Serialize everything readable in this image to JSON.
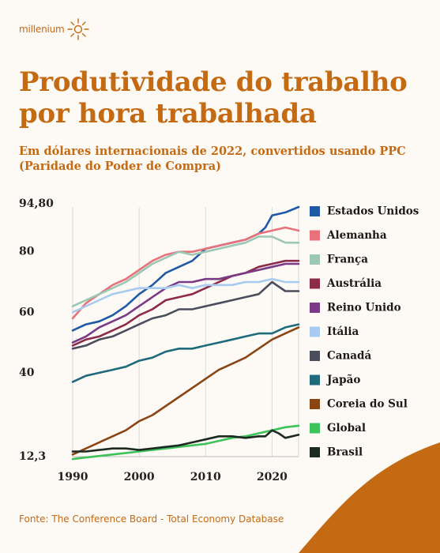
{
  "brand": {
    "name": "millenium"
  },
  "colors": {
    "accent": "#c46a12",
    "background": "#fdf9f5"
  },
  "header": {
    "title": "Produtividade do trabalho por hora trabalhada",
    "subtitle": "Em dólares internacionais de 2022, convertidos usando PPC (Paridade do Poder de Compra)"
  },
  "footer": {
    "source": "Fonte: The Conference Board - Total Economy Database"
  },
  "chart_data": {
    "type": "line",
    "title": "Produtividade do trabalho por hora trabalhada",
    "subtitle": "Em dólares internacionais de 2022, convertidos usando PPC (Paridade do Poder de Compra)",
    "xlabel": "",
    "ylabel": "",
    "xlim": [
      1990,
      2024
    ],
    "ylim": [
      12.3,
      94.8
    ],
    "x_ticks": [
      1990,
      2000,
      2010,
      2020
    ],
    "y_ticks": [
      12.3,
      40,
      60,
      80,
      94.8
    ],
    "y_tick_labels": [
      "12,3",
      "40",
      "60",
      "80",
      "94,80"
    ],
    "grid": "vertical",
    "legend_position": "right",
    "series": [
      {
        "name": "Estados Unidos",
        "color": "#1f5aa6",
        "points": [
          [
            1990,
            54
          ],
          [
            1992,
            56
          ],
          [
            1994,
            57
          ],
          [
            1996,
            59
          ],
          [
            1998,
            62
          ],
          [
            2000,
            66
          ],
          [
            2002,
            69
          ],
          [
            2004,
            73
          ],
          [
            2006,
            75
          ],
          [
            2008,
            77
          ],
          [
            2010,
            81
          ],
          [
            2012,
            82
          ],
          [
            2014,
            83
          ],
          [
            2016,
            84
          ],
          [
            2018,
            86
          ],
          [
            2019,
            88
          ],
          [
            2020,
            92
          ],
          [
            2022,
            93
          ],
          [
            2024,
            94.8
          ]
        ]
      },
      {
        "name": "Alemanha",
        "color": "#e8727a",
        "points": [
          [
            1990,
            58
          ],
          [
            1992,
            63
          ],
          [
            1994,
            66
          ],
          [
            1996,
            69
          ],
          [
            1998,
            71
          ],
          [
            2000,
            74
          ],
          [
            2002,
            77
          ],
          [
            2004,
            79
          ],
          [
            2006,
            80
          ],
          [
            2008,
            80
          ],
          [
            2010,
            81
          ],
          [
            2012,
            82
          ],
          [
            2014,
            83
          ],
          [
            2016,
            84
          ],
          [
            2018,
            86
          ],
          [
            2020,
            87
          ],
          [
            2022,
            88
          ],
          [
            2024,
            87
          ]
        ]
      },
      {
        "name": "França",
        "color": "#9cc7b4",
        "points": [
          [
            1990,
            62
          ],
          [
            1992,
            64
          ],
          [
            1994,
            66
          ],
          [
            1996,
            68
          ],
          [
            1998,
            70
          ],
          [
            2000,
            73
          ],
          [
            2002,
            76
          ],
          [
            2004,
            78
          ],
          [
            2006,
            80
          ],
          [
            2008,
            79
          ],
          [
            2010,
            80
          ],
          [
            2012,
            81
          ],
          [
            2014,
            82
          ],
          [
            2016,
            83
          ],
          [
            2018,
            85
          ],
          [
            2020,
            85
          ],
          [
            2022,
            83
          ],
          [
            2024,
            83
          ]
        ]
      },
      {
        "name": "Austrália",
        "color": "#8c2b4a",
        "points": [
          [
            1990,
            49
          ],
          [
            1992,
            51
          ],
          [
            1994,
            52
          ],
          [
            1996,
            54
          ],
          [
            1998,
            56
          ],
          [
            2000,
            59
          ],
          [
            2002,
            61
          ],
          [
            2004,
            64
          ],
          [
            2006,
            65
          ],
          [
            2008,
            66
          ],
          [
            2010,
            68
          ],
          [
            2012,
            70
          ],
          [
            2014,
            72
          ],
          [
            2016,
            73
          ],
          [
            2018,
            75
          ],
          [
            2020,
            76
          ],
          [
            2022,
            77
          ],
          [
            2024,
            77
          ]
        ]
      },
      {
        "name": "Reino Unido",
        "color": "#7a3a86",
        "points": [
          [
            1990,
            50
          ],
          [
            1992,
            52
          ],
          [
            1994,
            55
          ],
          [
            1996,
            57
          ],
          [
            1998,
            59
          ],
          [
            2000,
            62
          ],
          [
            2002,
            65
          ],
          [
            2004,
            68
          ],
          [
            2006,
            70
          ],
          [
            2008,
            70
          ],
          [
            2010,
            71
          ],
          [
            2012,
            71
          ],
          [
            2014,
            72
          ],
          [
            2016,
            73
          ],
          [
            2018,
            74
          ],
          [
            2020,
            75
          ],
          [
            2022,
            76
          ],
          [
            2024,
            76
          ]
        ]
      },
      {
        "name": "Itália",
        "color": "#a9cbef",
        "points": [
          [
            1990,
            60
          ],
          [
            1992,
            62
          ],
          [
            1994,
            64
          ],
          [
            1996,
            66
          ],
          [
            1998,
            67
          ],
          [
            2000,
            68
          ],
          [
            2002,
            68
          ],
          [
            2004,
            68
          ],
          [
            2006,
            69
          ],
          [
            2008,
            68
          ],
          [
            2010,
            69
          ],
          [
            2012,
            69
          ],
          [
            2014,
            69
          ],
          [
            2016,
            70
          ],
          [
            2018,
            70
          ],
          [
            2020,
            71
          ],
          [
            2022,
            70
          ],
          [
            2024,
            70
          ]
        ]
      },
      {
        "name": "Canadá",
        "color": "#4a4e5c",
        "points": [
          [
            1990,
            48
          ],
          [
            1992,
            49
          ],
          [
            1994,
            51
          ],
          [
            1996,
            52
          ],
          [
            1998,
            54
          ],
          [
            2000,
            56
          ],
          [
            2002,
            58
          ],
          [
            2004,
            59
          ],
          [
            2006,
            61
          ],
          [
            2008,
            61
          ],
          [
            2010,
            62
          ],
          [
            2012,
            63
          ],
          [
            2014,
            64
          ],
          [
            2016,
            65
          ],
          [
            2018,
            66
          ],
          [
            2020,
            70
          ],
          [
            2022,
            67
          ],
          [
            2024,
            67
          ]
        ]
      },
      {
        "name": "Japão",
        "color": "#1e6b7c",
        "points": [
          [
            1990,
            37
          ],
          [
            1992,
            39
          ],
          [
            1994,
            40
          ],
          [
            1996,
            41
          ],
          [
            1998,
            42
          ],
          [
            2000,
            44
          ],
          [
            2002,
            45
          ],
          [
            2004,
            47
          ],
          [
            2006,
            48
          ],
          [
            2008,
            48
          ],
          [
            2010,
            49
          ],
          [
            2012,
            50
          ],
          [
            2014,
            51
          ],
          [
            2016,
            52
          ],
          [
            2018,
            53
          ],
          [
            2020,
            53
          ],
          [
            2022,
            55
          ],
          [
            2024,
            56
          ]
        ]
      },
      {
        "name": "Coreia do Sul",
        "color": "#8b4513",
        "points": [
          [
            1990,
            13
          ],
          [
            1992,
            15
          ],
          [
            1994,
            17
          ],
          [
            1996,
            19
          ],
          [
            1998,
            21
          ],
          [
            2000,
            24
          ],
          [
            2002,
            26
          ],
          [
            2004,
            29
          ],
          [
            2006,
            32
          ],
          [
            2008,
            35
          ],
          [
            2010,
            38
          ],
          [
            2012,
            41
          ],
          [
            2014,
            43
          ],
          [
            2016,
            45
          ],
          [
            2018,
            48
          ],
          [
            2020,
            51
          ],
          [
            2022,
            53
          ],
          [
            2024,
            55
          ]
        ]
      },
      {
        "name": "Global",
        "color": "#3ec25a",
        "points": [
          [
            1990,
            11.5
          ],
          [
            1992,
            12
          ],
          [
            1994,
            12.5
          ],
          [
            1996,
            13
          ],
          [
            1998,
            13.5
          ],
          [
            2000,
            14
          ],
          [
            2002,
            14.5
          ],
          [
            2004,
            15
          ],
          [
            2006,
            15.5
          ],
          [
            2008,
            16
          ],
          [
            2010,
            16.5
          ],
          [
            2012,
            17.5
          ],
          [
            2014,
            18.5
          ],
          [
            2016,
            19
          ],
          [
            2018,
            20
          ],
          [
            2020,
            21
          ],
          [
            2022,
            22
          ],
          [
            2024,
            22.5
          ]
        ]
      },
      {
        "name": "Brasil",
        "color": "#1c2a22",
        "points": [
          [
            1990,
            14
          ],
          [
            1992,
            14
          ],
          [
            1994,
            14.5
          ],
          [
            1996,
            15
          ],
          [
            1998,
            15
          ],
          [
            2000,
            14.5
          ],
          [
            2002,
            15
          ],
          [
            2004,
            15.5
          ],
          [
            2006,
            16
          ],
          [
            2008,
            17
          ],
          [
            2010,
            18
          ],
          [
            2012,
            19
          ],
          [
            2014,
            19
          ],
          [
            2016,
            18.5
          ],
          [
            2018,
            19
          ],
          [
            2019,
            19
          ],
          [
            2020,
            21
          ],
          [
            2021,
            20
          ],
          [
            2022,
            18.5
          ],
          [
            2024,
            19.5
          ]
        ]
      }
    ]
  }
}
